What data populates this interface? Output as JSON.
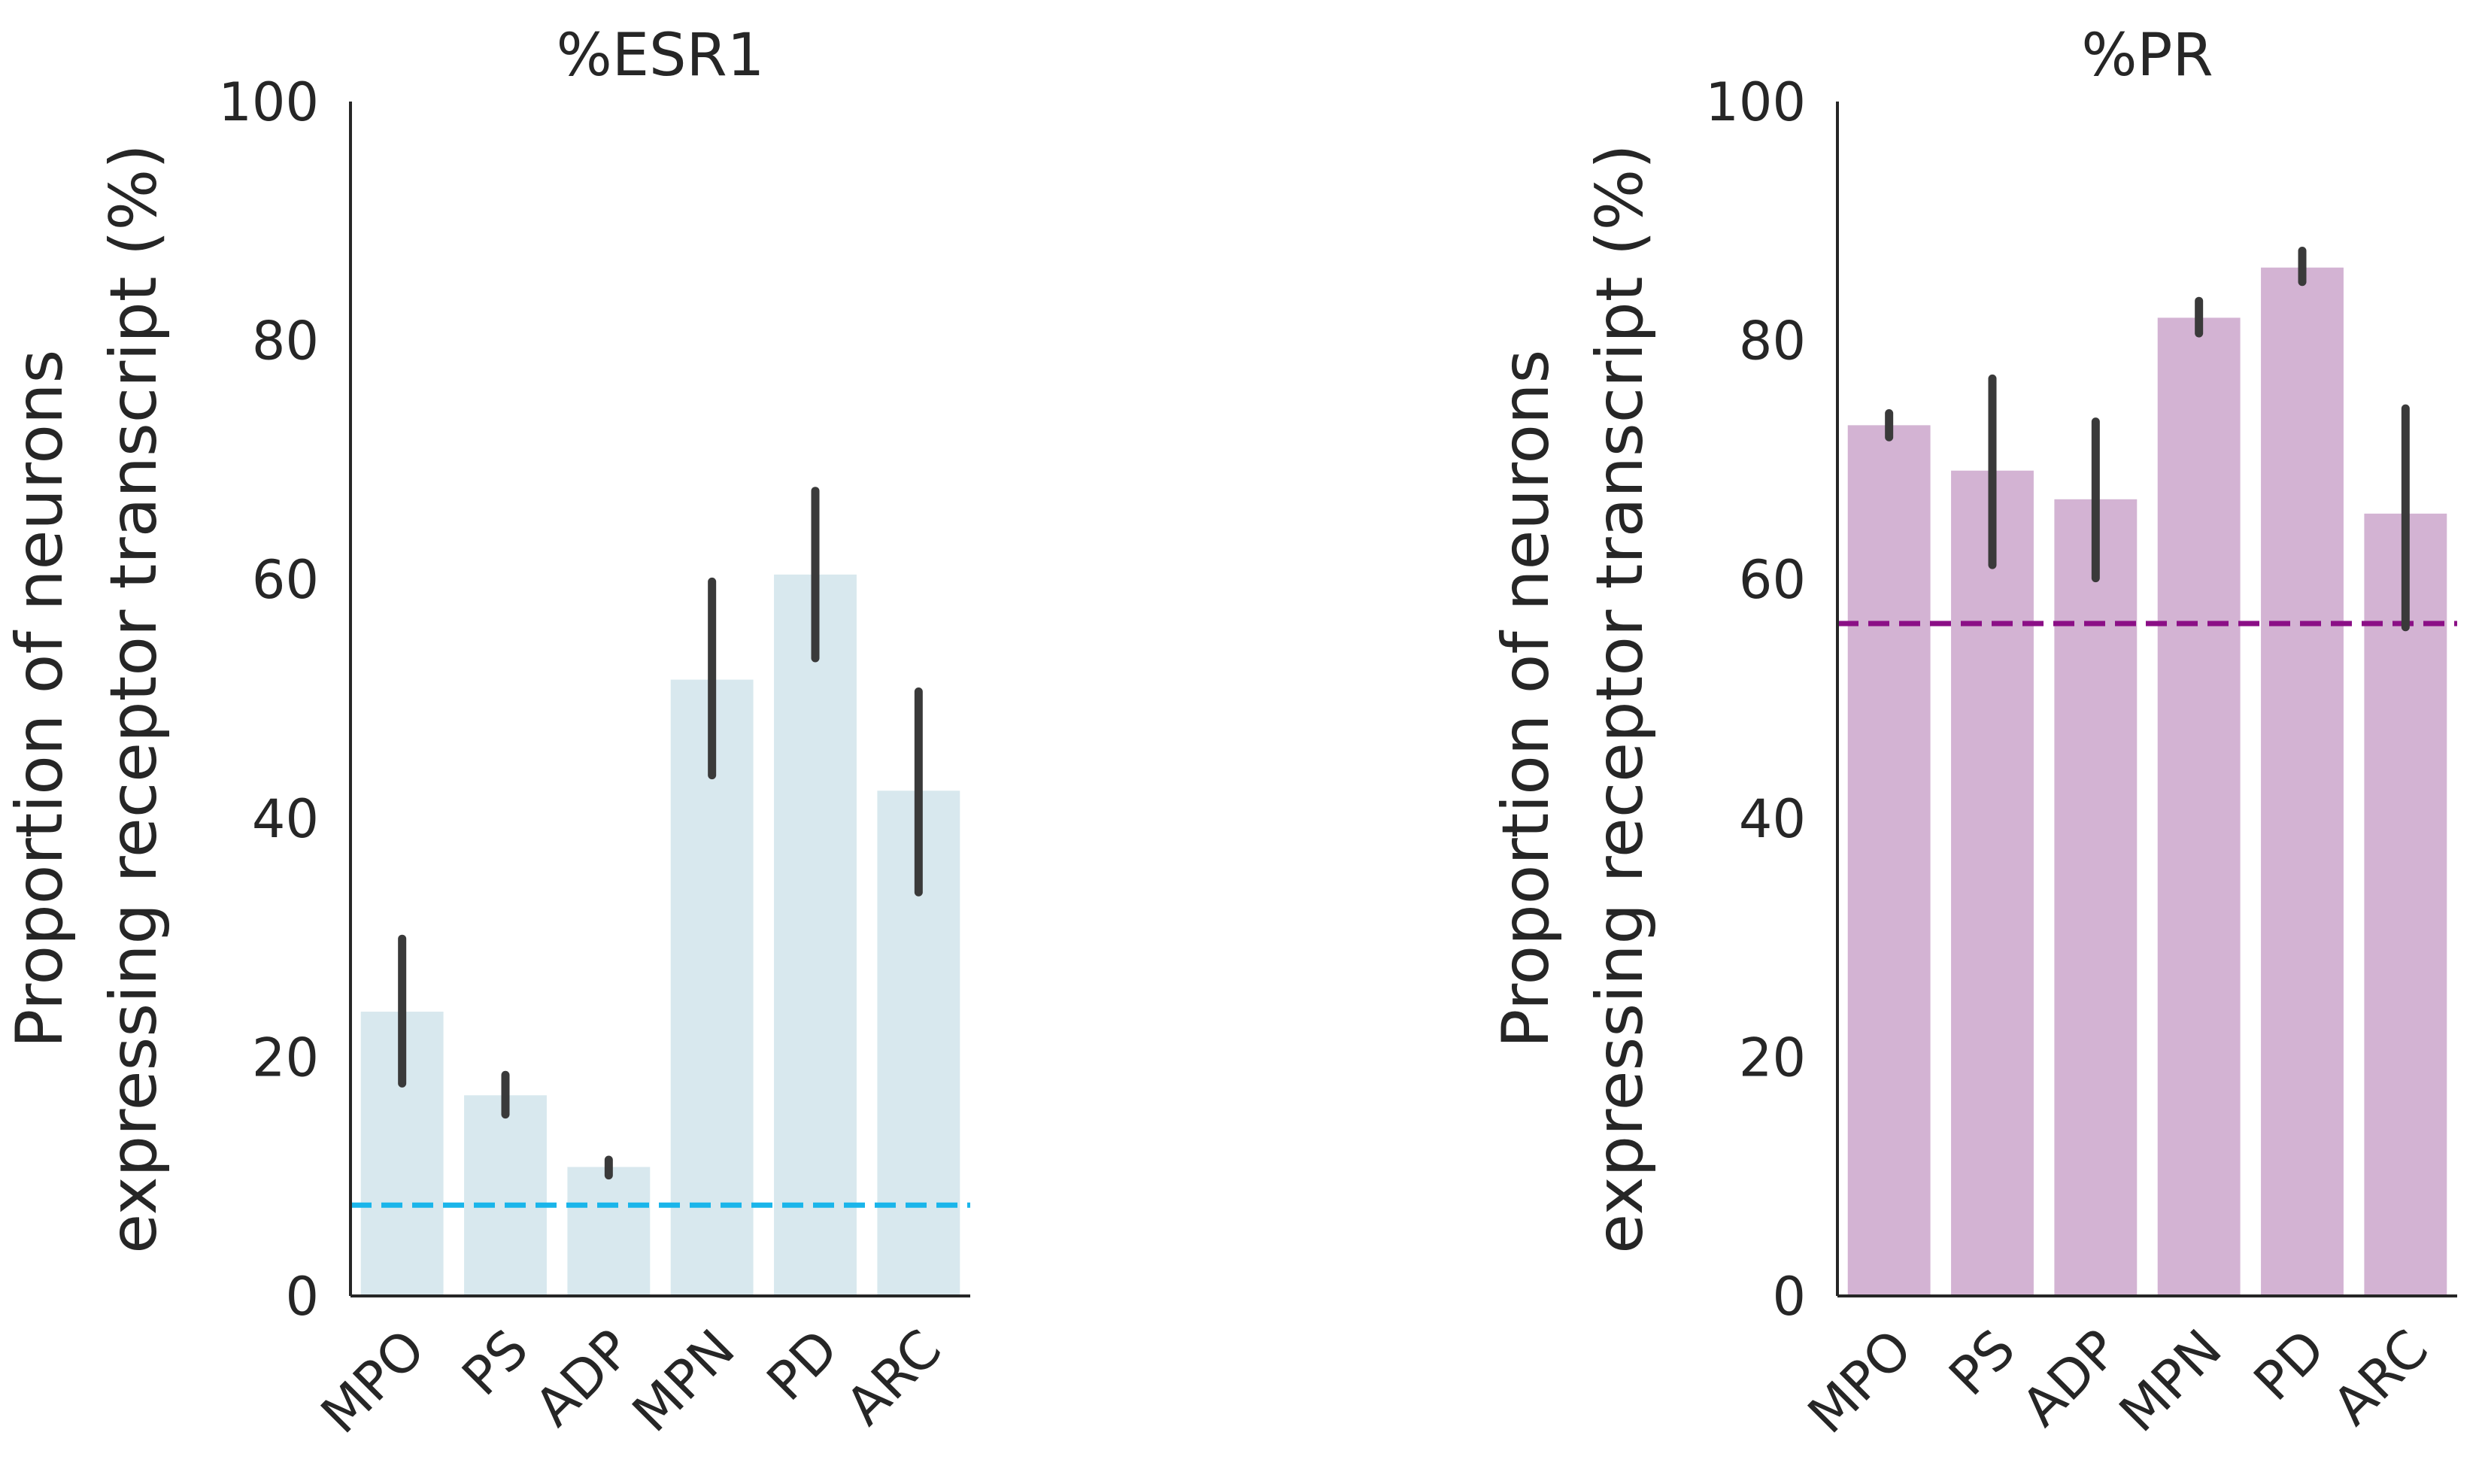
{
  "chart_data": [
    {
      "type": "bar",
      "title": "%ESR1",
      "ylabel": [
        "Proportion of neurons",
        "expressing receptor transcript (%)"
      ],
      "xlabel": "",
      "categories": [
        "MPO",
        "PS",
        "ADP",
        "MPN",
        "PD",
        "ARC"
      ],
      "values": [
        23.8,
        16.8,
        10.8,
        51.6,
        60.4,
        42.3
      ],
      "error_low": [
        17.8,
        15.2,
        10.1,
        43.6,
        53.4,
        33.8
      ],
      "error_high": [
        29.9,
        18.5,
        11.4,
        59.8,
        67.4,
        50.6
      ],
      "reference_line": 7.6,
      "ylim": [
        0,
        100
      ],
      "yticks": [
        "0",
        "20",
        "40",
        "60",
        "80",
        "100"
      ],
      "bar_color": "#d8e8ee",
      "reference_color": "#1ab5ea",
      "error_color": "#3a3a3a",
      "grid": false,
      "legend": "none"
    },
    {
      "type": "bar",
      "title": "%PR",
      "ylabel": [
        "Proportion of neurons",
        "expressing receptor transcript (%)"
      ],
      "xlabel": "",
      "categories": [
        "MPO",
        "PS",
        "ADP",
        "MPN",
        "PD",
        "ARC"
      ],
      "values": [
        72.9,
        69.1,
        66.7,
        81.9,
        86.1,
        65.5
      ],
      "error_low": [
        71.9,
        61.2,
        60.1,
        80.6,
        84.9,
        56.0
      ],
      "error_high": [
        73.9,
        76.8,
        73.2,
        83.3,
        87.5,
        74.3
      ],
      "reference_line": 56.3,
      "ylim": [
        0,
        100
      ],
      "yticks": [
        "0",
        "20",
        "40",
        "60",
        "80",
        "100"
      ],
      "bar_color": "#d3b3d3",
      "reference_color": "#8b0f86",
      "error_color": "#3a3a3a",
      "grid": false,
      "legend": "none"
    }
  ]
}
